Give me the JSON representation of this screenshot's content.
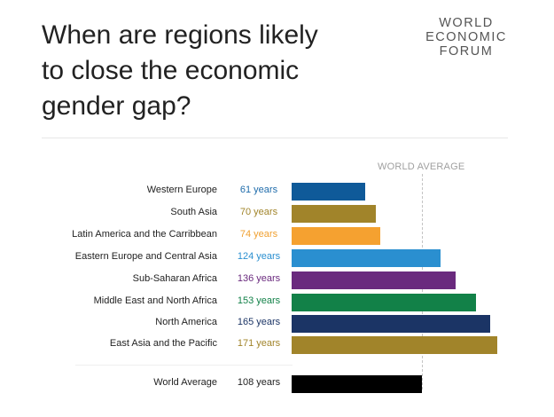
{
  "title": "When are regions likely\nto close the economic\ngender gap?",
  "logo": {
    "line1": "WORLD",
    "line2": "ECONOMIC",
    "line3": "FORUM"
  },
  "chart_data": {
    "type": "bar",
    "orientation": "horizontal",
    "reference_label": "WORLD AVERAGE",
    "reference_value": 108,
    "categories": [
      "Western Europe",
      "South Asia",
      "Latin America and the Carribbean",
      "Eastern Europe and Central Asia",
      "Sub-Saharan Africa",
      "Middle East and North Africa",
      "North America",
      "East Asia and the Pacific",
      "World Average"
    ],
    "values": [
      61,
      70,
      74,
      124,
      136,
      153,
      165,
      171,
      108
    ],
    "value_labels": [
      "61 years",
      "70 years",
      "74 years",
      "124 years",
      "136 years",
      "153 years",
      "165 years",
      "171 years",
      "108 years"
    ],
    "colors": [
      "#0f5a99",
      "#a1842a",
      "#f5a130",
      "#2a8fd0",
      "#6a2a7e",
      "#128148",
      "#1b3465",
      "#a1842a",
      "#000000"
    ],
    "label_colors": [
      "#1f6cab",
      "#a1842a",
      "#f0a030",
      "#2a8fd0",
      "#6a2a7e",
      "#128148",
      "#1b3465",
      "#a1842a",
      "#222222"
    ]
  }
}
